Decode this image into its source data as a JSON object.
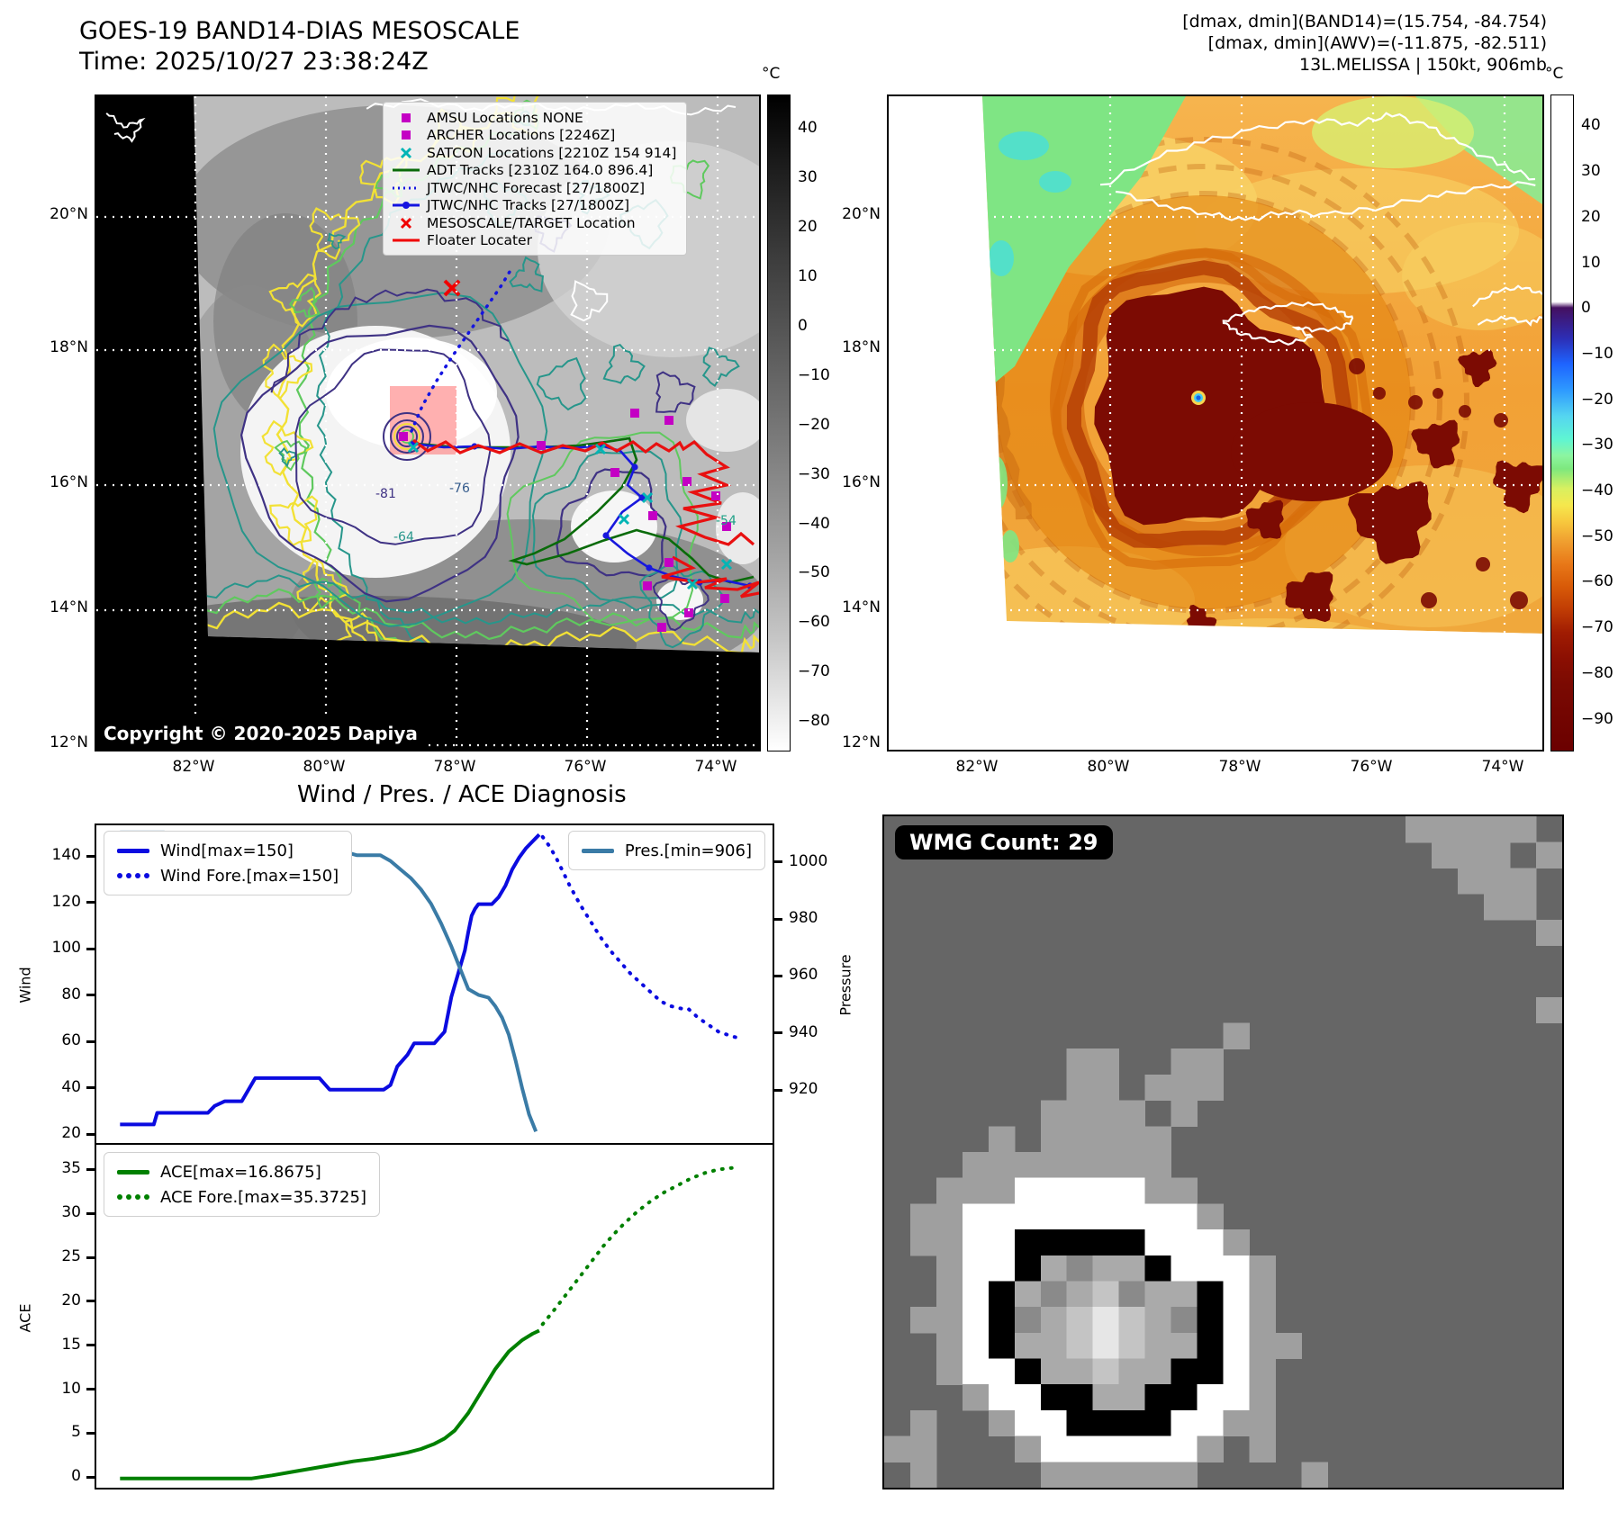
{
  "panel_tl": {
    "title": "GOES-19 BAND14-DIAS MESOSCALE",
    "subtitle": "Time: 2025/10/27 23:38:24Z",
    "copyright": "Copyright © 2020-2025 Dapiya",
    "colorbar": {
      "unit": "°C",
      "ticks": [
        40,
        30,
        20,
        10,
        0,
        -10,
        -20,
        -30,
        -40,
        -50,
        -60,
        -70,
        -80
      ],
      "range": [
        47,
        -86
      ],
      "style": "grayscale black(hot) to white(cold)"
    },
    "x_ticks": [
      "82°W",
      "80°W",
      "78°W",
      "76°W",
      "74°W"
    ],
    "y_ticks": [
      "20°N",
      "18°N",
      "16°N",
      "14°N",
      "12°N"
    ],
    "contour_labels": [
      "-81",
      "-76",
      "-64",
      "-54"
    ],
    "legend": [
      {
        "label": "AMSU Locations NONE",
        "marker": "square",
        "color": "#c400c4"
      },
      {
        "label": "ARCHER Locations [2246Z]",
        "marker": "square",
        "color": "#c400c4"
      },
      {
        "label": "SATCON Locations [2210Z 154 914]",
        "marker": "x",
        "color": "#00b5b5"
      },
      {
        "label": "ADT Tracks [2310Z 164.0 896.4]",
        "marker": "line",
        "color": "#0a6b0a"
      },
      {
        "label": "JTWC/NHC Forecast [27/1800Z]",
        "marker": "dotted",
        "color": "#1414e0"
      },
      {
        "label": "JTWC/NHC Tracks [27/1800Z]",
        "marker": "line-dot",
        "color": "#1414e0"
      },
      {
        "label": "MESOSCALE/TARGET Location",
        "marker": "x",
        "color": "#f00000"
      },
      {
        "label": "Floater Locater",
        "marker": "line",
        "color": "#f00000"
      }
    ]
  },
  "panel_tr": {
    "header_lines": [
      "[dmax, dmin](BAND14)=(15.754, -84.754)",
      "[dmax, dmin](AWV)=(-11.875, -82.511)",
      "13L.MELISSA | 150kt, 906mb"
    ],
    "colorbar": {
      "unit": "°C",
      "ticks": [
        40,
        30,
        20,
        10,
        0,
        -10,
        -20,
        -30,
        -40,
        -50,
        -60,
        -70,
        -80,
        -90
      ],
      "range": [
        47,
        -97
      ],
      "style": "IR enhancement white/purple/blue/cyan/green/yellow/orange/darkred"
    },
    "x_ticks": [
      "82°W",
      "80°W",
      "78°W",
      "76°W",
      "74°W"
    ],
    "y_ticks": [
      "20°N",
      "18°N",
      "16°N",
      "14°N",
      "12°N"
    ]
  },
  "section_title": "Wind / Pres. / ACE Diagnosis",
  "chart_data": [
    {
      "type": "line",
      "title": "Wind / Pres. / ACE Diagnosis",
      "xlabel": "",
      "ylabel": "Wind",
      "ylabel_right": "Pressure",
      "ylim": [
        17,
        154
      ],
      "ylim_right": [
        902,
        1013.5
      ],
      "yticks": [
        20,
        40,
        60,
        80,
        100,
        120,
        140
      ],
      "yticks_right": [
        920,
        940,
        960,
        980,
        1000
      ],
      "grid": false,
      "legend_positions": [
        "upper left",
        "upper right"
      ],
      "series": [
        {
          "name": "Wind[max=150]",
          "axis": "left",
          "style": "solid",
          "color": "#0b0be0",
          "points": [
            [
              0.035,
              25
            ],
            [
              0.085,
              25
            ],
            [
              0.09,
              30
            ],
            [
              0.165,
              30
            ],
            [
              0.175,
              33
            ],
            [
              0.19,
              35
            ],
            [
              0.215,
              35
            ],
            [
              0.225,
              40
            ],
            [
              0.235,
              45
            ],
            [
              0.33,
              45
            ],
            [
              0.345,
              40
            ],
            [
              0.425,
              40
            ],
            [
              0.435,
              42
            ],
            [
              0.445,
              50
            ],
            [
              0.46,
              55
            ],
            [
              0.47,
              60
            ],
            [
              0.5,
              60
            ],
            [
              0.515,
              65
            ],
            [
              0.525,
              80
            ],
            [
              0.535,
              90
            ],
            [
              0.545,
              100
            ],
            [
              0.55,
              108
            ],
            [
              0.555,
              115
            ],
            [
              0.56,
              118
            ],
            [
              0.565,
              120
            ],
            [
              0.585,
              120
            ],
            [
              0.595,
              123
            ],
            [
              0.605,
              128
            ],
            [
              0.615,
              135
            ],
            [
              0.625,
              140
            ],
            [
              0.635,
              144
            ],
            [
              0.645,
              147
            ],
            [
              0.655,
              150
            ]
          ]
        },
        {
          "name": "Wind Fore.[max=150]",
          "axis": "left",
          "style": "dotted",
          "color": "#0b0be0",
          "points": [
            [
              0.66,
              149
            ],
            [
              0.67,
              145
            ],
            [
              0.68,
              140
            ],
            [
              0.69,
              134
            ],
            [
              0.7,
              128
            ],
            [
              0.715,
              120
            ],
            [
              0.73,
              113
            ],
            [
              0.745,
              106
            ],
            [
              0.76,
              100
            ],
            [
              0.775,
              95
            ],
            [
              0.79,
              90
            ],
            [
              0.805,
              86
            ],
            [
              0.82,
              82
            ],
            [
              0.835,
              78
            ],
            [
              0.85,
              76
            ],
            [
              0.865,
              75
            ],
            [
              0.875,
              75
            ],
            [
              0.89,
              71
            ],
            [
              0.905,
              68
            ],
            [
              0.92,
              65
            ],
            [
              0.94,
              63
            ],
            [
              0.955,
              62
            ]
          ]
        },
        {
          "name": "Pres.[min=906]",
          "axis": "right",
          "style": "solid",
          "color": "#3a7ba6",
          "points": [
            [
              0.035,
              1011
            ],
            [
              0.1,
              1011
            ],
            [
              0.13,
              1010
            ],
            [
              0.16,
              1009
            ],
            [
              0.19,
              1007
            ],
            [
              0.215,
              1005
            ],
            [
              0.235,
              1004
            ],
            [
              0.29,
              1004
            ],
            [
              0.315,
              1003
            ],
            [
              0.33,
              1003
            ],
            [
              0.345,
              1004
            ],
            [
              0.37,
              1004
            ],
            [
              0.385,
              1003
            ],
            [
              0.42,
              1003
            ],
            [
              0.435,
              1001
            ],
            [
              0.45,
              998
            ],
            [
              0.465,
              995
            ],
            [
              0.48,
              991
            ],
            [
              0.495,
              986
            ],
            [
              0.51,
              979
            ],
            [
              0.525,
              971
            ],
            [
              0.54,
              962
            ],
            [
              0.55,
              956
            ],
            [
              0.565,
              954
            ],
            [
              0.58,
              953
            ],
            [
              0.59,
              950
            ],
            [
              0.6,
              946
            ],
            [
              0.61,
              940
            ],
            [
              0.62,
              931
            ],
            [
              0.63,
              921
            ],
            [
              0.64,
              912
            ],
            [
              0.65,
              906
            ]
          ]
        }
      ]
    },
    {
      "type": "line",
      "title": "",
      "xlabel": "",
      "ylabel": "ACE",
      "ylim": [
        -1,
        38
      ],
      "yticks": [
        0,
        5,
        10,
        15,
        20,
        25,
        30,
        35
      ],
      "grid": false,
      "legend_positions": [
        "upper left"
      ],
      "series": [
        {
          "name": "ACE[max=16.8675]",
          "axis": "left",
          "style": "solid",
          "color": "#008000",
          "points": [
            [
              0.035,
              0.05
            ],
            [
              0.23,
              0.05
            ],
            [
              0.26,
              0.4
            ],
            [
              0.29,
              0.8
            ],
            [
              0.32,
              1.2
            ],
            [
              0.35,
              1.6
            ],
            [
              0.38,
              2.0
            ],
            [
              0.41,
              2.3
            ],
            [
              0.44,
              2.7
            ],
            [
              0.46,
              3.0
            ],
            [
              0.48,
              3.4
            ],
            [
              0.5,
              4.0
            ],
            [
              0.515,
              4.6
            ],
            [
              0.53,
              5.5
            ],
            [
              0.55,
              7.5
            ],
            [
              0.57,
              10.0
            ],
            [
              0.59,
              12.5
            ],
            [
              0.61,
              14.5
            ],
            [
              0.63,
              15.8
            ],
            [
              0.645,
              16.5
            ],
            [
              0.655,
              16.87
            ]
          ]
        },
        {
          "name": "ACE Fore.[max=35.3725]",
          "axis": "left",
          "style": "dotted",
          "color": "#008000",
          "points": [
            [
              0.66,
              17.6
            ],
            [
              0.675,
              19
            ],
            [
              0.69,
              20.5
            ],
            [
              0.705,
              22
            ],
            [
              0.72,
              23.5
            ],
            [
              0.735,
              25
            ],
            [
              0.75,
              26.5
            ],
            [
              0.765,
              27.8
            ],
            [
              0.78,
              29
            ],
            [
              0.8,
              30.4
            ],
            [
              0.82,
              31.6
            ],
            [
              0.84,
              32.6
            ],
            [
              0.86,
              33.4
            ],
            [
              0.88,
              34.2
            ],
            [
              0.9,
              34.8
            ],
            [
              0.92,
              35.2
            ],
            [
              0.94,
              35.37
            ]
          ]
        }
      ]
    }
  ],
  "panel_br": {
    "badge": "WMG Count: 29",
    "palette": {
      ".": "#666666",
      "m": "#9f9f9f",
      "w": "#ffffff",
      "k": "#000000",
      "a": "#8a8a8a",
      "b": "#aaaaaa",
      "c": "#c4c4c4",
      "l": "#e6e6e6"
    },
    "pixels": [
      "....................mmmmm.",
      ".....................mmm.m",
      "......................mmm.",
      ".......................mm.",
      ".........................m",
      "..........................",
      "..........................",
      ".........................m",
      ".............m............",
      ".......mm..mm.............",
      ".......mm.mmm.............",
      "......mmmm.m..............",
      "....m.mmmmm...............",
      "...mmmmmmmm...............",
      "..mmmwwwwwmm..............",
      ".mmwwwwwwwwwm.............",
      ".mmwwkkkkkwwwm............",
      "..mwwkbabbkwwwm...........",
      "..mwkbabcabbkwm...........",
      ".mmwkabclcbakwm...........",
      "..mwkbbclcbbkwmm..........",
      "..mwwkbbcbbkkwm...........",
      "...mwwkkbbkkwwm...........",
      ".m..mwwkkkkwwmm...........",
      "mm...mwwwwwwm.m...........",
      ".m....mmmmmm....m........."
    ]
  }
}
